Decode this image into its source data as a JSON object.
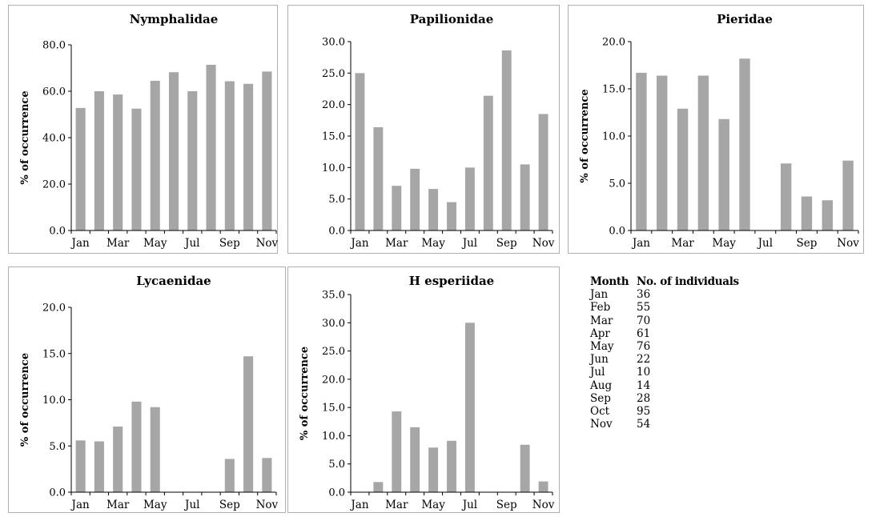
{
  "chart_data": [
    {
      "type": "bar",
      "title": "Nymphalidae",
      "ylabel": "% of occurrence",
      "xlabel": "",
      "categories": [
        "Jan",
        "Feb",
        "Mar",
        "Apr",
        "May",
        "Jun",
        "Jul",
        "Aug",
        "Sep",
        "Oct",
        "Nov"
      ],
      "tick_labels": [
        "Jan",
        "",
        "Mar",
        "",
        "May",
        "",
        "Jul",
        "",
        "Sep",
        "",
        "Nov"
      ],
      "values": [
        52.8,
        60.0,
        58.6,
        52.5,
        64.5,
        68.2,
        60.0,
        71.4,
        64.3,
        63.2,
        68.5
      ],
      "ylim": [
        0,
        80
      ],
      "yticks": [
        "0.0",
        "20.0",
        "40.0",
        "60.0",
        "80.0"
      ],
      "color": "#a6a6a6"
    },
    {
      "type": "bar",
      "title": "Papilionidae",
      "ylabel": "",
      "xlabel": "",
      "categories": [
        "Jan",
        "Feb",
        "Mar",
        "Apr",
        "May",
        "Jun",
        "Jul",
        "Aug",
        "Sep",
        "Oct",
        "Nov"
      ],
      "tick_labels": [
        "Jan",
        "",
        "Mar",
        "",
        "May",
        "",
        "Jul",
        "",
        "Sep",
        "",
        "Nov"
      ],
      "values": [
        25.0,
        16.4,
        7.1,
        9.8,
        6.6,
        4.5,
        10.0,
        21.4,
        28.6,
        10.5,
        18.5
      ],
      "ylim": [
        0,
        30
      ],
      "yticks": [
        "0.0",
        "5.0",
        "10.0",
        "15.0",
        "20.0",
        "25.0",
        "30.0"
      ],
      "color": "#a6a6a6"
    },
    {
      "type": "bar",
      "title": "Pieridae",
      "ylabel": "% of occurrence",
      "xlabel": "",
      "categories": [
        "Jan",
        "Feb",
        "Mar",
        "Apr",
        "May",
        "Jun",
        "Jul",
        "Aug",
        "Sep",
        "Oct",
        "Nov"
      ],
      "tick_labels": [
        "Jan",
        "",
        "Mar",
        "",
        "May",
        "",
        "Jul",
        "",
        "Sep",
        "",
        "Nov"
      ],
      "values": [
        16.7,
        16.4,
        12.9,
        16.4,
        11.8,
        18.2,
        0,
        7.1,
        3.6,
        3.2,
        7.4
      ],
      "ylim": [
        0,
        20
      ],
      "yticks": [
        "0.0",
        "5.0",
        "10.0",
        "15.0",
        "20.0"
      ],
      "color": "#a6a6a6"
    },
    {
      "type": "bar",
      "title": "Lycaenidae",
      "ylabel": "% of occurrence",
      "xlabel": "",
      "categories": [
        "Jan",
        "Feb",
        "Mar",
        "Apr",
        "May",
        "Jun",
        "Jul",
        "Aug",
        "Sep",
        "Oct",
        "Nov"
      ],
      "tick_labels": [
        "Jan",
        "",
        "Mar",
        "",
        "May",
        "",
        "Jul",
        "",
        "Sep",
        "",
        "Nov"
      ],
      "values": [
        5.6,
        5.5,
        7.1,
        9.8,
        9.2,
        0,
        0,
        0,
        3.6,
        14.7,
        3.7
      ],
      "ylim": [
        0,
        20
      ],
      "yticks": [
        "0.0",
        "5.0",
        "10.0",
        "15.0",
        "20.0"
      ],
      "color": "#a6a6a6"
    },
    {
      "type": "bar",
      "title": "H esperiidae",
      "ylabel": "% of occurrence",
      "xlabel": "",
      "categories": [
        "Jan",
        "Feb",
        "Mar",
        "Apr",
        "May",
        "Jun",
        "Jul",
        "Aug",
        "Sep",
        "Oct",
        "Nov"
      ],
      "tick_labels": [
        "Jan",
        "",
        "Mar",
        "",
        "May",
        "",
        "Jul",
        "",
        "Sep",
        "",
        "Nov"
      ],
      "values": [
        0,
        1.8,
        14.3,
        11.5,
        7.9,
        9.1,
        30.0,
        0,
        0,
        8.4,
        1.9
      ],
      "ylim": [
        0,
        35
      ],
      "yticks": [
        "0.0",
        "5.0",
        "10.0",
        "15.0",
        "20.0",
        "25.0",
        "30.0",
        "35.0"
      ],
      "color": "#a6a6a6"
    }
  ],
  "table": {
    "header_month": "Month",
    "header_count": "No. of individuals",
    "rows": [
      {
        "month": "Jan",
        "count": "36"
      },
      {
        "month": "Feb",
        "count": "55"
      },
      {
        "month": "Mar",
        "count": "70"
      },
      {
        "month": "Apr",
        "count": "61"
      },
      {
        "month": "May",
        "count": "76"
      },
      {
        "month": "Jun",
        "count": "22"
      },
      {
        "month": "Jul",
        "count": "10"
      },
      {
        "month": "Aug",
        "count": "14"
      },
      {
        "month": "Sep",
        "count": "28"
      },
      {
        "month": "Oct",
        "count": "95"
      },
      {
        "month": "Nov",
        "count": "54"
      }
    ]
  }
}
